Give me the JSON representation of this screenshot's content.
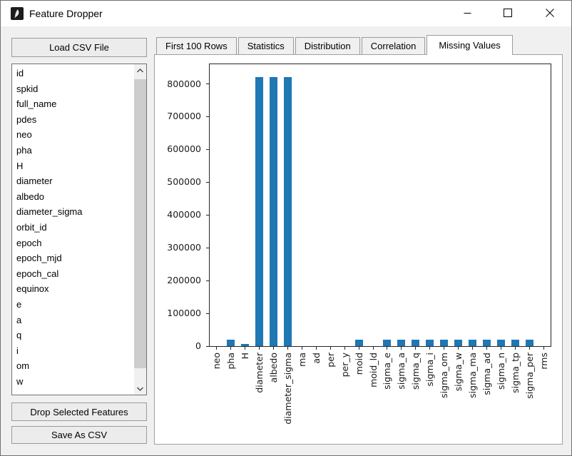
{
  "window": {
    "title": "Feature Dropper"
  },
  "titlebar": {
    "icons": {
      "app": "tk-feather-icon",
      "minimize": "minimize-icon",
      "maximize": "maximize-icon",
      "close": "close-icon"
    }
  },
  "sidebar": {
    "load_button": "Load CSV File",
    "drop_button": "Drop Selected Features",
    "save_button": "Save As CSV",
    "items": [
      "id",
      "spkid",
      "full_name",
      "pdes",
      "neo",
      "pha",
      "H",
      "diameter",
      "albedo",
      "diameter_sigma",
      "orbit_id",
      "epoch",
      "epoch_mjd",
      "epoch_cal",
      "equinox",
      "e",
      "a",
      "q",
      "i",
      "om",
      "w"
    ],
    "scrollbar_icons": [
      "chevron-up-icon",
      "chevron-down-icon"
    ]
  },
  "tabs": {
    "items": [
      "First 100 Rows",
      "Statistics",
      "Distribution",
      "Correlation",
      "Missing Values"
    ],
    "active": "Missing Values"
  },
  "chart_data": {
    "type": "bar",
    "title": "",
    "xlabel": "",
    "ylabel": "",
    "categories": [
      "neo",
      "pha",
      "H",
      "diameter",
      "albedo",
      "diameter_sigma",
      "ma",
      "ad",
      "per",
      "per_y",
      "moid",
      "moid_ld",
      "sigma_e",
      "sigma_a",
      "sigma_q",
      "sigma_i",
      "sigma_om",
      "sigma_w",
      "sigma_ma",
      "sigma_ad",
      "sigma_n",
      "sigma_tp",
      "sigma_per",
      "rms"
    ],
    "values": [
      0,
      20000,
      7000,
      820000,
      820000,
      820000,
      0,
      0,
      0,
      0,
      20000,
      0,
      20000,
      20000,
      20000,
      20000,
      20000,
      20000,
      20000,
      20000,
      20000,
      20000,
      20000,
      0
    ],
    "yticks": [
      0,
      100000,
      200000,
      300000,
      400000,
      500000,
      600000,
      700000,
      800000
    ],
    "ylim": [
      0,
      860000
    ],
    "grid": false,
    "legend": null,
    "tick_label_rotation": 90,
    "bar_color": "#1f77b4"
  }
}
